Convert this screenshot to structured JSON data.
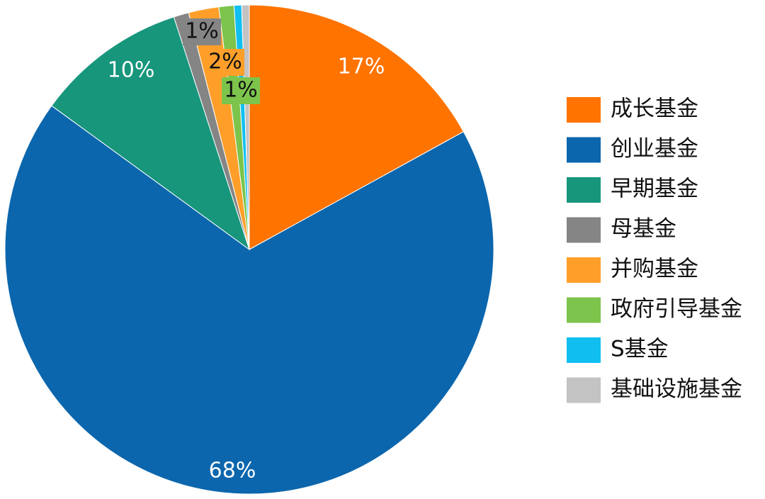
{
  "chart_data": {
    "type": "pie",
    "categories": [
      "成长基金",
      "创业基金",
      "早期基金",
      "母基金",
      "并购基金",
      "政府引导基金",
      "S基金",
      "基础设施基金"
    ],
    "values": [
      17,
      68,
      10,
      1,
      2,
      1,
      0.5,
      0.5
    ],
    "value_labels": [
      "17%",
      "68%",
      "10%",
      "1%",
      "2%",
      "1%",
      null,
      null
    ],
    "colors": [
      "#ff7300",
      "#0b66ad",
      "#17967c",
      "#858585",
      "#ff9f2a",
      "#7cc44c",
      "#10bff0",
      "#c3c3c3"
    ],
    "legend": "right"
  }
}
